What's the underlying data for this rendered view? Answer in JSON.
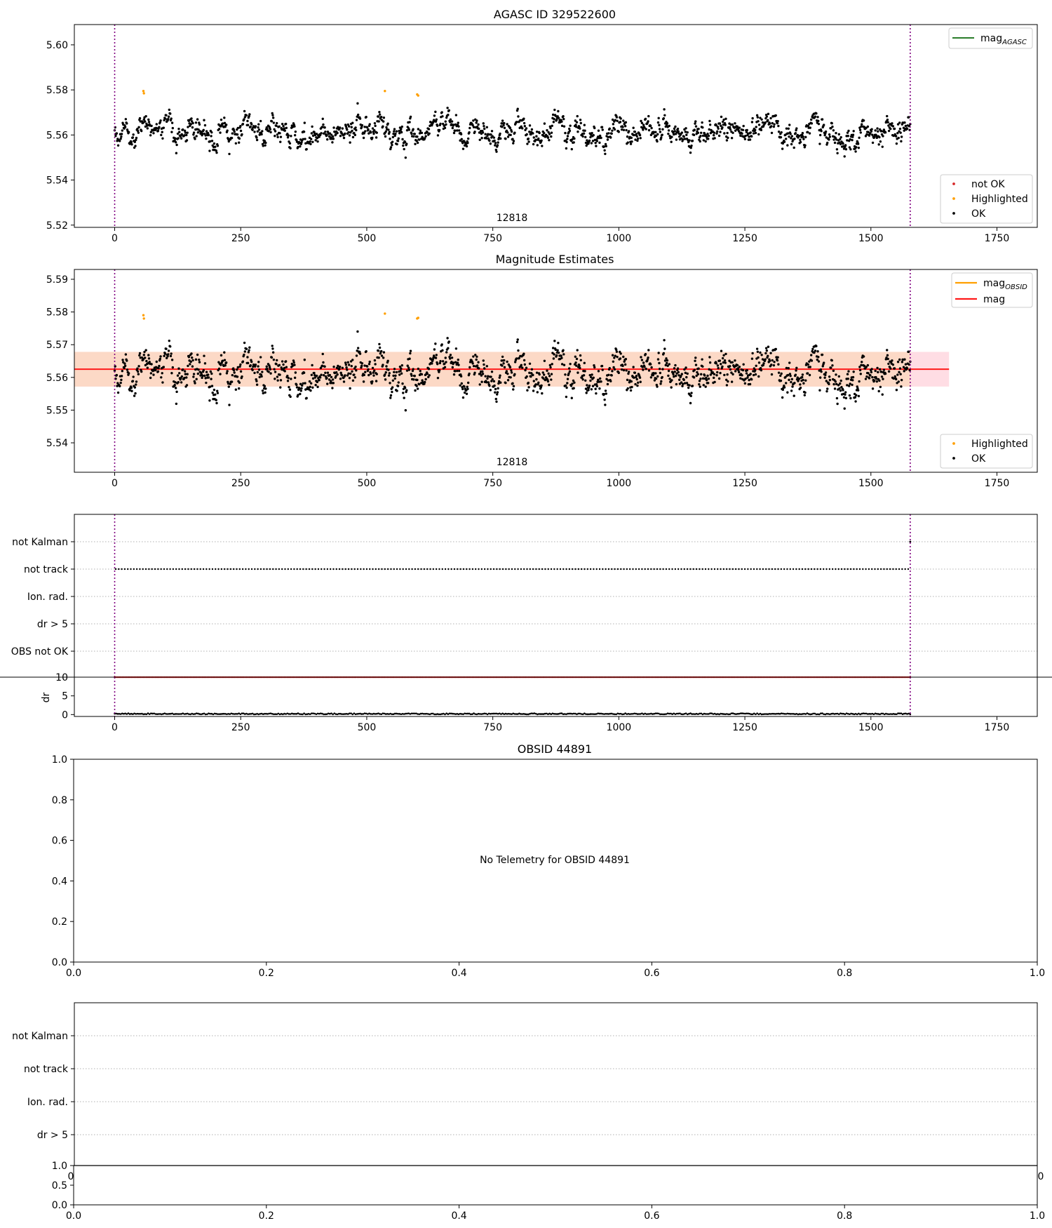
{
  "figure": {
    "colors": {
      "ok": "#000000",
      "not_ok": "#d62728",
      "highlighted": "#ff9f00",
      "mag_agasc": "#2a7d2a",
      "mag_obsid": "#ff9f00",
      "mag": "#ff1a1a",
      "band_outer": "#ffdde4",
      "band_inner": "#fcd9c6",
      "obs_boundary": "#800080",
      "grid": "#b0b0b0"
    }
  },
  "chart_data": [
    {
      "id": "agasc",
      "type": "scatter",
      "title": "AGASC ID 329522600",
      "xlim": [
        -80,
        1830
      ],
      "ylim": [
        5.519,
        5.609
      ],
      "xticks": [
        0,
        250,
        500,
        750,
        1000,
        1250,
        1500,
        1750
      ],
      "yticks": [
        5.52,
        5.54,
        5.56,
        5.58,
        5.6
      ],
      "y_tick_decimals": 2,
      "n_points": 1576,
      "y_center": 5.562,
      "y_noise": 0.0045,
      "highlighted": [
        [
          57,
          5.5795
        ],
        [
          58,
          5.5785
        ],
        [
          536,
          5.5795
        ],
        [
          600,
          5.578
        ],
        [
          602,
          5.5775
        ]
      ],
      "obsid_boundaries": [
        0,
        1578
      ],
      "obsid_label": "12818",
      "legend_lines": [
        {
          "label": "mag",
          "sub": "AGASC",
          "color": "#2a7d2a"
        }
      ],
      "legend_points": [
        {
          "label": "not OK",
          "color": "#d62728"
        },
        {
          "label": "Highlighted",
          "color": "#ff9f00"
        },
        {
          "label": "OK",
          "color": "#000000"
        }
      ],
      "grid": false
    },
    {
      "id": "mag-estimates",
      "type": "scatter",
      "title": "Magnitude Estimates",
      "xlim": [
        -80,
        1830
      ],
      "ylim": [
        5.531,
        5.593
      ],
      "xticks": [
        0,
        250,
        500,
        750,
        1000,
        1250,
        1500,
        1750
      ],
      "yticks": [
        5.54,
        5.55,
        5.56,
        5.57,
        5.58,
        5.59
      ],
      "y_tick_decimals": 2,
      "n_points": 1576,
      "y_center": 5.562,
      "y_noise": 0.0045,
      "mag_line": 5.5625,
      "band_outer": [
        5.5572,
        5.5678
      ],
      "band_inner": [
        5.5572,
        5.5678
      ],
      "band_x": [
        -80,
        1655
      ],
      "highlighted": [
        [
          57,
          5.579
        ],
        [
          58,
          5.578
        ],
        [
          536,
          5.5795
        ],
        [
          600,
          5.578
        ],
        [
          602,
          5.5782
        ]
      ],
      "obsid_boundaries": [
        0,
        1578
      ],
      "obsid_label": "12818",
      "legend_lines": [
        {
          "label": "mag",
          "sub": "OBSID",
          "color": "#ff9f00"
        },
        {
          "label": "mag",
          "sub": "",
          "color": "#ff1a1a"
        }
      ],
      "legend_points": [
        {
          "label": "Highlighted",
          "color": "#ff9f00"
        },
        {
          "label": "OK",
          "color": "#000000"
        }
      ],
      "grid": false
    },
    {
      "id": "flags",
      "type": "scatter",
      "xlim": [
        -80,
        1830
      ],
      "categories": [
        "not Kalman",
        "not track",
        "Ion. rad.",
        "dr > 5",
        "OBS not OK"
      ],
      "flag_series": [
        {
          "category": "not track",
          "x_range": [
            2,
            1578
          ]
        },
        {
          "category": "not Kalman",
          "x": [
            1578
          ]
        }
      ],
      "obsid_boundaries": [
        0,
        1578
      ],
      "grid": true
    },
    {
      "id": "dr",
      "type": "scatter",
      "xlim": [
        -80,
        1830
      ],
      "ylim": [
        -0.5,
        10
      ],
      "xticks": [
        0,
        250,
        500,
        750,
        1000,
        1250,
        1500,
        1750
      ],
      "yticks": [
        0,
        5,
        10
      ],
      "ylabel": "dr",
      "dr_ok_level": 0.2,
      "dr_flag_level": 10,
      "n_points": 1576,
      "obsid_boundaries": [
        0,
        1578
      ],
      "grid": false
    },
    {
      "id": "obsid-44891",
      "type": "scatter",
      "title": "OBSID 44891",
      "xlim": [
        0,
        1
      ],
      "ylim": [
        0,
        1
      ],
      "xticks": [
        0.0,
        0.2,
        0.4,
        0.6,
        0.8,
        1.0
      ],
      "yticks": [
        0.0,
        0.2,
        0.4,
        0.6,
        0.8,
        1.0
      ],
      "annotation": "No Telemetry for OBSID 44891",
      "grid": false
    },
    {
      "id": "flags-empty",
      "type": "scatter",
      "categories": [
        "not Kalman",
        "not track",
        "Ion. rad.",
        "dr > 5"
      ],
      "grid": true
    },
    {
      "id": "dr-empty",
      "type": "scatter",
      "xlim": [
        0,
        1
      ],
      "ylim": [
        0,
        1
      ],
      "xticks": [
        0.0,
        0.2,
        0.4,
        0.6,
        0.8,
        1.0
      ],
      "yticks": [
        0.0,
        0.5,
        1.0
      ],
      "grid": false
    }
  ]
}
